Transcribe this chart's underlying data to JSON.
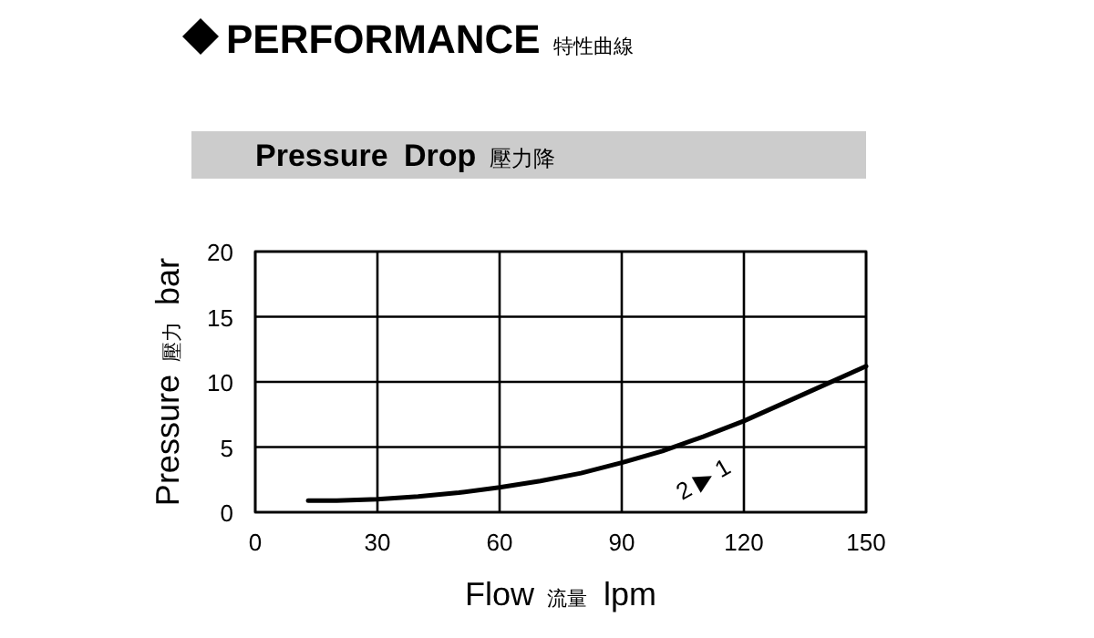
{
  "chart_data": {
    "type": "line",
    "title": "PERFORMANCE 特性曲線",
    "subtitle": "Pressure Drop 壓力降",
    "xlabel": "Flow 流量 lpm",
    "ylabel": "Pressure 壓力 bar",
    "x": [
      13,
      20,
      30,
      40,
      50,
      60,
      70,
      80,
      90,
      100,
      110,
      120,
      130,
      140,
      150
    ],
    "series": [
      {
        "color": "#000000",
        "values": [
          0.9,
          0.9,
          1.0,
          1.2,
          1.5,
          1.9,
          2.4,
          3.0,
          3.8,
          4.7,
          5.8,
          7.0,
          8.4,
          9.8,
          11.2
        ]
      }
    ],
    "xlim": [
      0,
      150
    ],
    "ylim": [
      0,
      20
    ],
    "xticks": [
      0,
      30,
      60,
      90,
      120,
      150
    ],
    "yticks": [
      0,
      5,
      10,
      15,
      20
    ],
    "grid": true,
    "marker": "none",
    "line_style": "solid",
    "annotations": [
      "2 ▶ 1"
    ]
  }
}
